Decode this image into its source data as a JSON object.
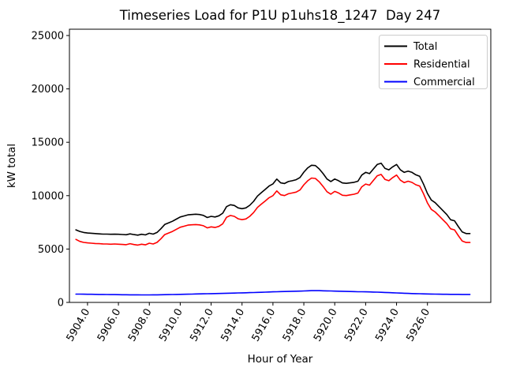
{
  "chart_data": {
    "type": "line",
    "title": "Timeseries Load for P1U p1uhs18_1247  Day 247",
    "xlabel": "Hour of Year",
    "ylabel": "kW total",
    "xlim": [
      5902.83,
      5930.1
    ],
    "ylim": [
      0,
      25590
    ],
    "grid": false,
    "legend_position": "upper right",
    "xticks": [
      5904,
      5906,
      5908,
      5910,
      5912,
      5914,
      5916,
      5918,
      5920,
      5922,
      5924,
      5926
    ],
    "xticklabels": [
      "5904.0",
      "5906.0",
      "5908.0",
      "5910.0",
      "5912.0",
      "5914.0",
      "5916.0",
      "5918.0",
      "5920.0",
      "5922.0",
      "5924.0",
      "5926.0"
    ],
    "yticks": [
      0,
      5000,
      10000,
      15000,
      20000,
      25000
    ],
    "yticklabels": [
      "0",
      "5000",
      "10000",
      "15000",
      "20000",
      "25000"
    ],
    "x_start": 5903.25,
    "x_step": 0.25,
    "x_end": 5928.75,
    "series": [
      {
        "name": "Total",
        "color": "#000000",
        "values": [
          6800,
          6650,
          6550,
          6500,
          6480,
          6450,
          6420,
          6400,
          6400,
          6380,
          6390,
          6380,
          6360,
          6340,
          6420,
          6350,
          6300,
          6380,
          6320,
          6480,
          6400,
          6550,
          6900,
          7300,
          7450,
          7600,
          7800,
          8000,
          8100,
          8200,
          8230,
          8260,
          8230,
          8150,
          7950,
          8060,
          8000,
          8110,
          8360,
          8970,
          9150,
          9080,
          8850,
          8780,
          8850,
          9100,
          9470,
          9960,
          10280,
          10580,
          10900,
          11100,
          11550,
          11200,
          11140,
          11320,
          11400,
          11490,
          11700,
          12200,
          12600,
          12850,
          12820,
          12500,
          12060,
          11560,
          11320,
          11560,
          11400,
          11190,
          11150,
          11200,
          11250,
          11350,
          11930,
          12180,
          12060,
          12500,
          12920,
          13040,
          12550,
          12420,
          12700,
          12920,
          12420,
          12180,
          12300,
          12180,
          11950,
          11810,
          11070,
          10210,
          9590,
          9340,
          8970,
          8600,
          8230,
          7740,
          7650,
          7100,
          6600,
          6450,
          6450
        ]
      },
      {
        "name": "Residential",
        "color": "#ff0000",
        "values": [
          5900,
          5720,
          5620,
          5580,
          5550,
          5520,
          5500,
          5480,
          5470,
          5450,
          5470,
          5450,
          5430,
          5410,
          5500,
          5420,
          5370,
          5450,
          5390,
          5550,
          5470,
          5620,
          5960,
          6350,
          6500,
          6650,
          6850,
          7040,
          7140,
          7240,
          7270,
          7290,
          7260,
          7180,
          6980,
          7080,
          7020,
          7120,
          7370,
          7970,
          8140,
          8060,
          7830,
          7750,
          7820,
          8060,
          8420,
          8900,
          9210,
          9500,
          9810,
          10000,
          10440,
          10080,
          10010,
          10180,
          10250,
          10330,
          10530,
          11020,
          11400,
          11650,
          11610,
          11290,
          10860,
          10370,
          10140,
          10400,
          10250,
          10040,
          10010,
          10070,
          10130,
          10240,
          10830,
          11090,
          10980,
          11430,
          11860,
          11990,
          11520,
          11400,
          11690,
          11930,
          11450,
          11220,
          11350,
          11240,
          11020,
          10900,
          10170,
          9320,
          8710,
          8470,
          8110,
          7740,
          7380,
          6890,
          6800,
          6250,
          5750,
          5610,
          5610
        ]
      },
      {
        "name": "Commercial",
        "color": "#0000ff",
        "values": [
          780,
          775,
          770,
          765,
          760,
          755,
          750,
          745,
          740,
          735,
          730,
          725,
          720,
          715,
          712,
          710,
          708,
          706,
          705,
          705,
          708,
          712,
          718,
          725,
          732,
          740,
          748,
          756,
          764,
          772,
          780,
          788,
          796,
          804,
          812,
          820,
          828,
          836,
          845,
          855,
          865,
          875,
          885,
          895,
          905,
          915,
          925,
          938,
          950,
          962,
          975,
          988,
          1000,
          1010,
          1020,
          1030,
          1040,
          1050,
          1060,
          1075,
          1090,
          1100,
          1105,
          1100,
          1090,
          1080,
          1070,
          1060,
          1050,
          1040,
          1030,
          1020,
          1010,
          1000,
          995,
          990,
          980,
          970,
          960,
          950,
          935,
          920,
          905,
          890,
          875,
          860,
          845,
          830,
          820,
          810,
          800,
          790,
          782,
          775,
          770,
          765,
          760,
          756,
          753,
          751,
          750,
          749,
          748
        ]
      }
    ],
    "legend": {
      "entries": [
        {
          "label": "Total",
          "color": "#000000"
        },
        {
          "label": "Residential",
          "color": "#ff0000"
        },
        {
          "label": "Commercial",
          "color": "#0000ff"
        }
      ],
      "border_color": "#cccccc"
    }
  }
}
